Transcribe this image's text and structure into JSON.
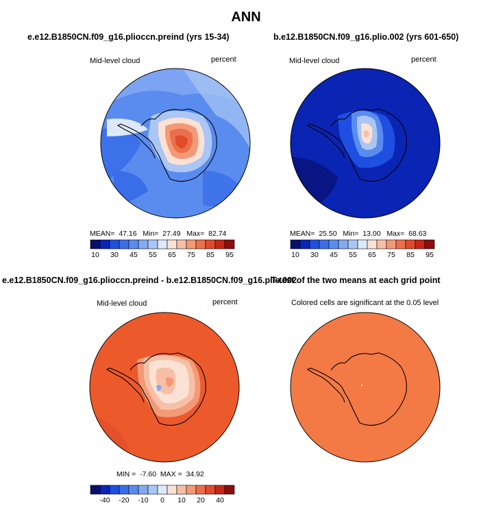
{
  "main_title": "ANN",
  "panels": {
    "p1": {
      "title": "e.e12.B1850CN.f09_g16.plioccn.preind (yrs 15-34)",
      "left_label": "Mid-level cloud",
      "right_label": "percent",
      "stats": {
        "mean_label": "MEAN=",
        "mean": "47.16",
        "min_label": "Min=",
        "min": "27.49",
        "max_label": "Max=",
        "max": "82.74"
      }
    },
    "p2": {
      "title": "b.e12.B1850CN.f09_g16.plio.002 (yrs 601-650)",
      "left_label": "Mid-level cloud",
      "right_label": "percent",
      "stats": {
        "mean_label": "MEAN=",
        "mean": "25.50",
        "min_label": "Min=",
        "min": "13.00",
        "max_label": "Max=",
        "max": "68.63"
      }
    },
    "p3": {
      "title": "e.e12.B1850CN.f09_g16.plioccn.preind - b.e12.B1850CN.f09_g16.plio.002",
      "left_label": "Mid-level cloud",
      "right_label": "percent",
      "stats": {
        "min_label": "MIN =",
        "min": "-7.60",
        "max_label": "MAX =",
        "max": "34.92"
      }
    },
    "p4": {
      "title": "T-test of the two means at each grid point",
      "subtitle": "Colored cells are significant at the 0.05 level"
    }
  },
  "colors": {
    "abs_palette": [
      "#08106e",
      "#0a24b4",
      "#1f4fe0",
      "#3a6ee8",
      "#5a8cef",
      "#84aaf2",
      "#aac6f5",
      "#dde9fa",
      "#fbe2d4",
      "#f7c0a6",
      "#f29a78",
      "#ec6f4b",
      "#e14b2a",
      "#c7261a",
      "#8c0d0d"
    ],
    "diff_palette": [
      "#08106e",
      "#0a24b4",
      "#1f4fe0",
      "#3a6ee8",
      "#5a8cef",
      "#84aaf2",
      "#aac6f5",
      "#dde9fa",
      "#fbe2d4",
      "#f7c0a6",
      "#f29a78",
      "#ec6f4b",
      "#e14b2a",
      "#c7261a",
      "#8c0d0d"
    ],
    "p1_background": "#5a8cef",
    "p2_background": "#0a24b4",
    "p3_background": "#ec5a2c",
    "p4_background": "#f47a45"
  },
  "chart_data": [
    {
      "type": "heatmap",
      "title": "e.e12.B1850CN.f09_g16.plioccn.preind (yrs 15-34)",
      "projection": "south-polar-stereographic",
      "variable": "Mid-level cloud",
      "units": "percent",
      "stats": {
        "mean": 47.16,
        "min": 27.49,
        "max": 82.74
      },
      "colorbar_levels": [
        10,
        20,
        30,
        40,
        45,
        50,
        55,
        60,
        65,
        70,
        75,
        80,
        85,
        90,
        95
      ],
      "colorbar_labels": [
        "10",
        "30",
        "45",
        "55",
        "65",
        "75",
        "85",
        "95"
      ]
    },
    {
      "type": "heatmap",
      "title": "b.e12.B1850CN.f09_g16.plio.002 (yrs 601-650)",
      "projection": "south-polar-stereographic",
      "variable": "Mid-level cloud",
      "units": "percent",
      "stats": {
        "mean": 25.5,
        "min": 13.0,
        "max": 68.63
      },
      "colorbar_levels": [
        10,
        20,
        30,
        40,
        45,
        50,
        55,
        60,
        65,
        70,
        75,
        80,
        85,
        90,
        95
      ],
      "colorbar_labels": [
        "10",
        "30",
        "45",
        "55",
        "65",
        "75",
        "85",
        "95"
      ]
    },
    {
      "type": "heatmap",
      "title": "e.e12.B1850CN.f09_g16.plioccn.preind - b.e12.B1850CN.f09_g16.plio.002",
      "projection": "south-polar-stereographic",
      "variable": "Mid-level cloud",
      "units": "percent",
      "stats": {
        "min": -7.6,
        "max": 34.92
      },
      "colorbar_levels": [
        -50,
        -40,
        -30,
        -20,
        -15,
        -10,
        -5,
        0,
        5,
        10,
        15,
        20,
        30,
        40,
        50
      ],
      "colorbar_labels": [
        "-40",
        "-20",
        "-10",
        "0",
        "10",
        "20",
        "40"
      ]
    },
    {
      "type": "heatmap",
      "title": "T-test of the two means at each grid point",
      "subtitle": "Colored cells are significant at the 0.05 level",
      "projection": "south-polar-stereographic"
    }
  ]
}
